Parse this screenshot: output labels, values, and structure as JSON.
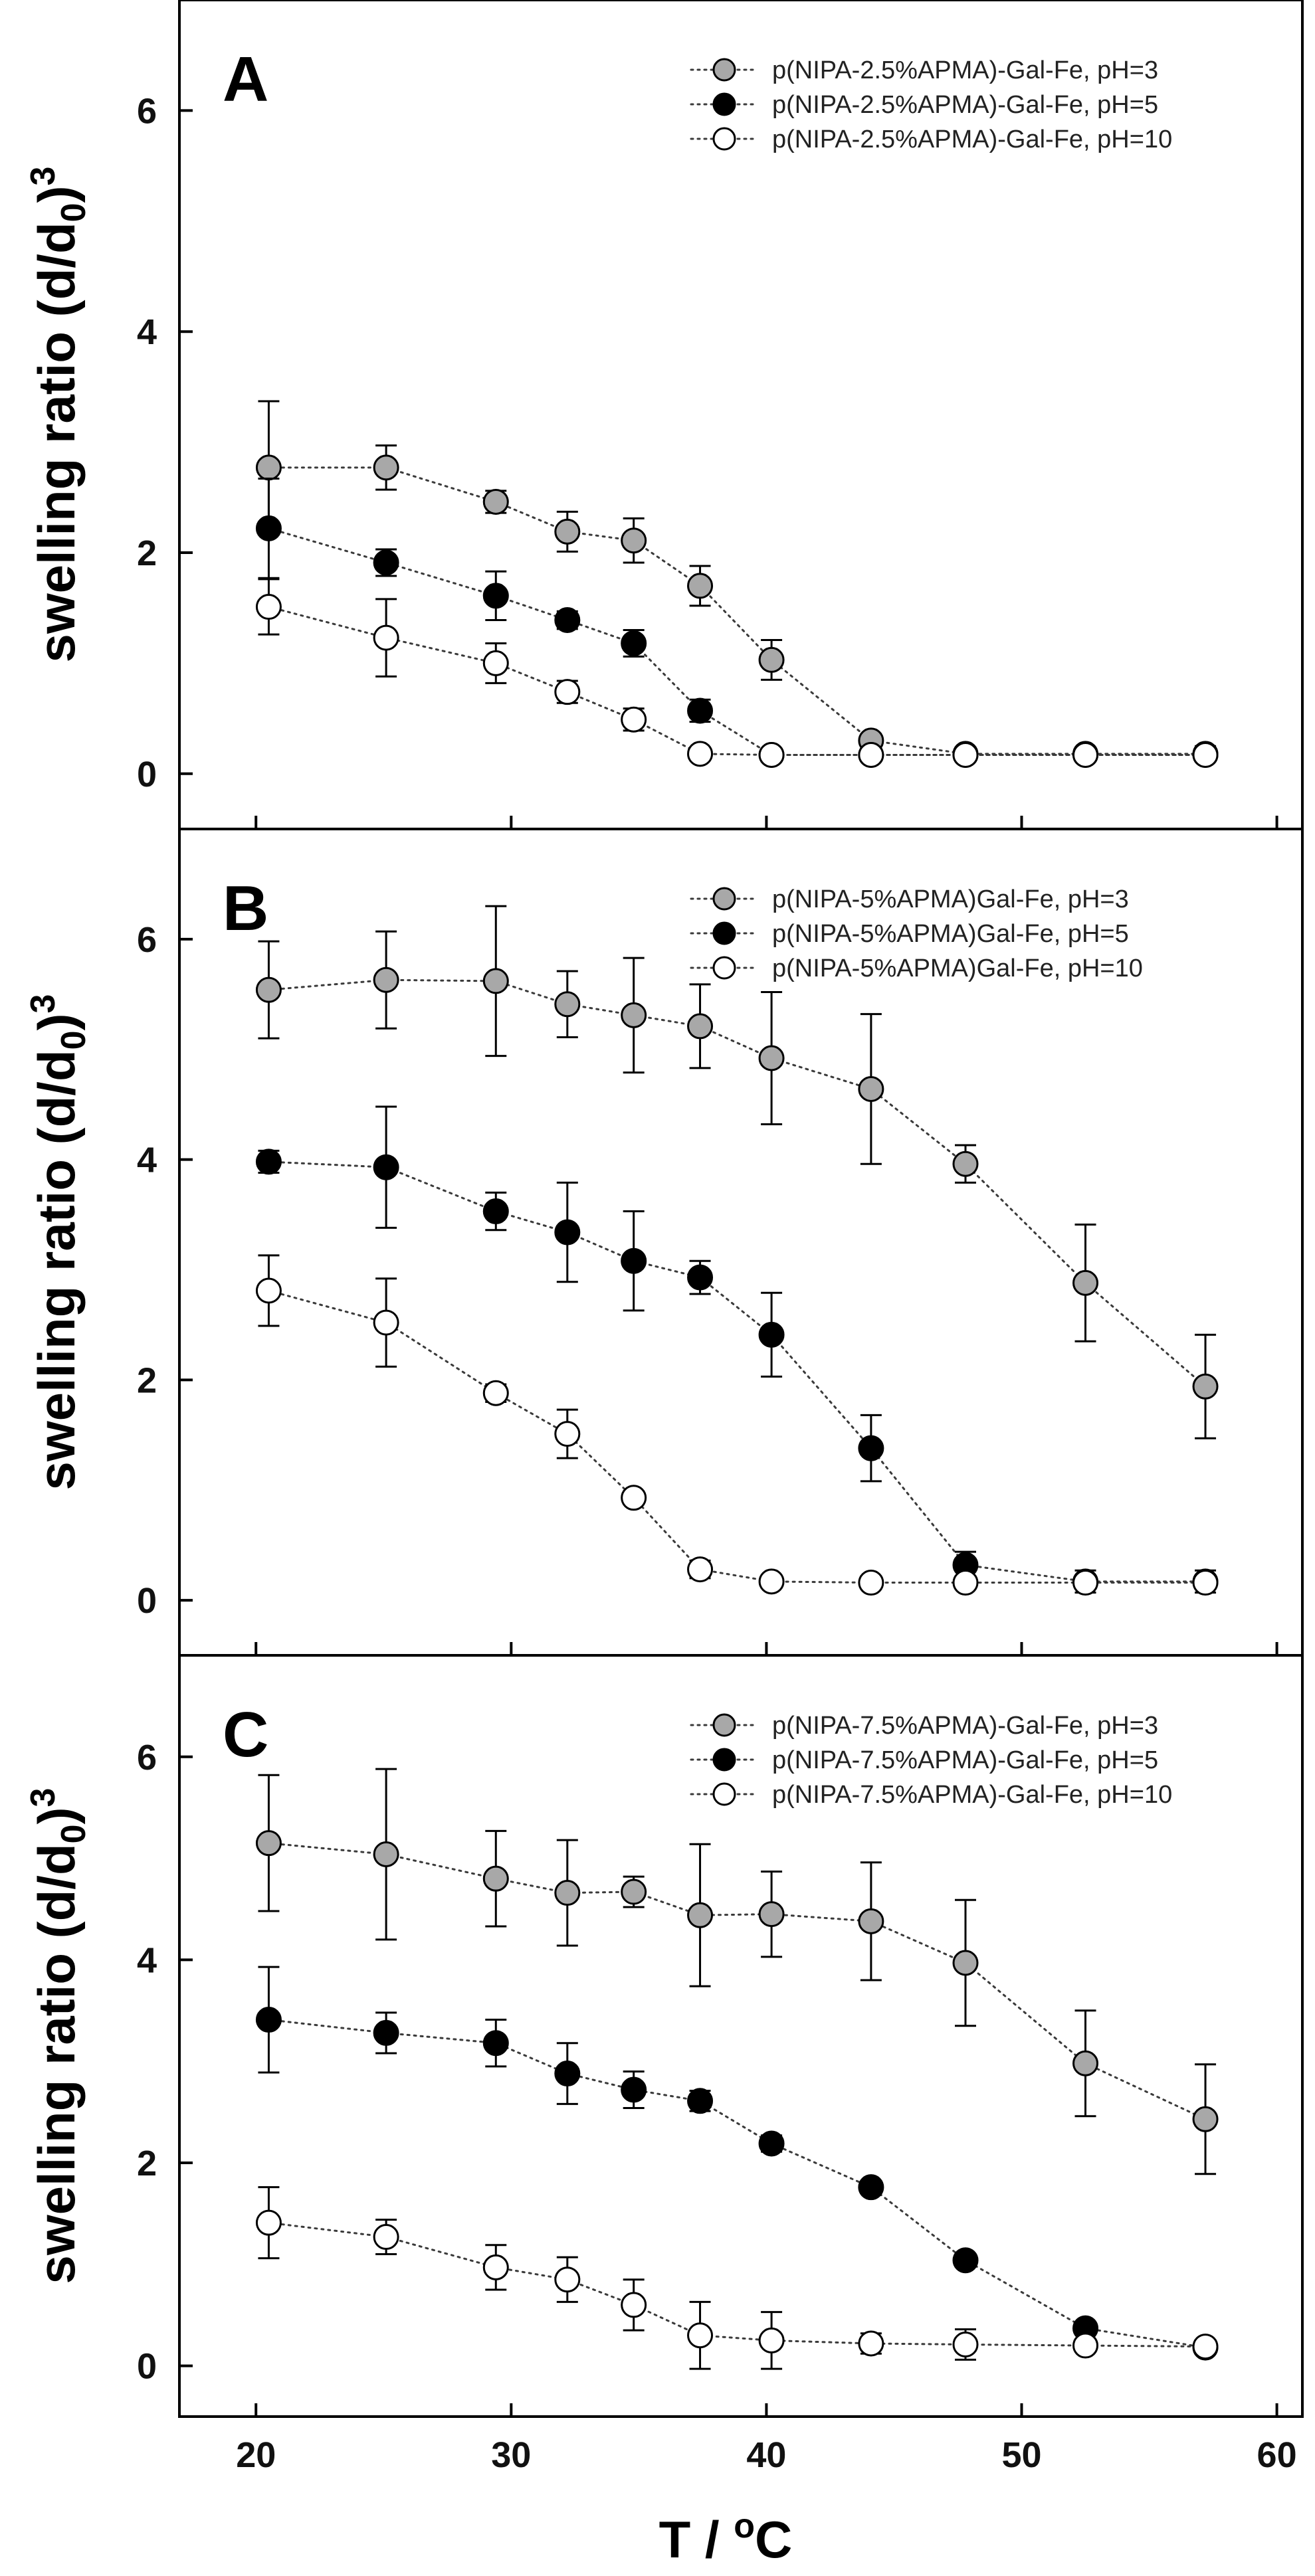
{
  "chart_data": [
    {
      "type": "scatter",
      "panel_label": "A",
      "xlabel": "T / oC",
      "ylabel": "swelling ratio (d/d0)3",
      "xlim": [
        17,
        61
      ],
      "ylim": [
        -0.5,
        7
      ],
      "xticks": [
        "20",
        "30",
        "40",
        "50",
        "60"
      ],
      "yticks": [
        "0",
        "2",
        "4",
        "6"
      ],
      "legend_position": "top-right",
      "series": [
        {
          "name": "p(NIPA-2.5%APMA)-Gal-Fe, pH=3",
          "color": "#a8a8a8",
          "x": [
            20.5,
            25.1,
            29.4,
            32.2,
            34.8,
            37.4,
            40.2,
            44.1,
            47.8,
            52.5,
            57.2
          ],
          "y": [
            2.77,
            2.77,
            2.46,
            2.19,
            2.11,
            1.7,
            1.03,
            0.3,
            0.18,
            0.18,
            0.18
          ],
          "err": [
            0.6,
            0.2,
            0.1,
            0.18,
            0.2,
            0.18,
            0.18,
            0.06,
            0.04,
            0.04,
            0.07
          ]
        },
        {
          "name": "p(NIPA-2.5%APMA)-Gal-Fe, pH=5",
          "color": "#000000",
          "x": [
            20.5,
            25.1,
            29.4,
            32.2,
            34.8,
            37.4,
            40.2,
            44.1,
            47.8,
            52.5,
            57.2
          ],
          "y": [
            2.22,
            1.91,
            1.61,
            1.39,
            1.18,
            0.57,
            0.17,
            0.17,
            0.17,
            0.17,
            0.17
          ],
          "err": [
            0.45,
            0.12,
            0.22,
            0.08,
            0.12,
            0.1,
            0.04,
            0.04,
            0.04,
            0.04,
            0.04
          ]
        },
        {
          "name": "p(NIPA-2.5%APMA)-Gal-Fe, pH=10",
          "color": "#ffffff",
          "x": [
            20.5,
            25.1,
            29.4,
            32.2,
            34.8,
            37.4,
            40.2,
            44.1,
            47.8,
            52.5,
            57.2
          ],
          "y": [
            1.51,
            1.23,
            1.0,
            0.74,
            0.49,
            0.18,
            0.17,
            0.17,
            0.17,
            0.17,
            0.17
          ],
          "err": [
            0.25,
            0.35,
            0.18,
            0.1,
            0.1,
            0.04,
            0.04,
            0.04,
            0.04,
            0.04,
            0.04
          ]
        }
      ]
    },
    {
      "type": "scatter",
      "panel_label": "B",
      "xlabel": "T / oC",
      "ylabel": "swelling ratio (d/d0)3",
      "xlim": [
        17,
        61
      ],
      "ylim": [
        -0.5,
        7
      ],
      "xticks": [
        "20",
        "30",
        "40",
        "50",
        "60"
      ],
      "yticks": [
        "0",
        "2",
        "4",
        "6"
      ],
      "legend_position": "top-right",
      "series": [
        {
          "name": "p(NIPA-5%APMA)Gal-Fe, pH=3",
          "color": "#a8a8a8",
          "x": [
            20.5,
            25.1,
            29.4,
            32.2,
            34.8,
            37.4,
            40.2,
            44.1,
            47.8,
            52.5,
            57.2
          ],
          "y": [
            5.54,
            5.63,
            5.62,
            5.41,
            5.31,
            5.21,
            4.92,
            4.64,
            3.96,
            2.88,
            1.94
          ],
          "err": [
            0.44,
            0.44,
            0.68,
            0.3,
            0.52,
            0.38,
            0.6,
            0.68,
            0.17,
            0.53,
            0.47
          ]
        },
        {
          "name": "p(NIPA-5%APMA)Gal-Fe, pH=5",
          "color": "#000000",
          "x": [
            20.5,
            25.1,
            29.4,
            32.2,
            34.8,
            37.4,
            40.2,
            44.1,
            47.8,
            52.5,
            57.2
          ],
          "y": [
            3.98,
            3.93,
            3.53,
            3.34,
            3.08,
            2.93,
            2.41,
            1.38,
            0.32,
            0.17,
            0.17
          ],
          "err": [
            0.1,
            0.55,
            0.17,
            0.45,
            0.45,
            0.15,
            0.38,
            0.3,
            0.12,
            0.1,
            0.1
          ]
        },
        {
          "name": "p(NIPA-5%APMA)Gal-Fe, pH=10",
          "color": "#ffffff",
          "x": [
            20.5,
            25.1,
            29.4,
            32.2,
            34.8,
            37.4,
            40.2,
            44.1,
            47.8,
            52.5,
            57.2
          ],
          "y": [
            2.81,
            2.52,
            1.88,
            1.51,
            0.93,
            0.28,
            0.17,
            0.16,
            0.16,
            0.16,
            0.16
          ],
          "err": [
            0.32,
            0.4,
            0.08,
            0.22,
            0.06,
            0.08,
            0.04,
            0.04,
            0.04,
            0.04,
            0.04
          ]
        }
      ]
    },
    {
      "type": "scatter",
      "panel_label": "C",
      "xlabel": "T / oC",
      "ylabel": "swelling ratio (d/d0)3",
      "xlim": [
        17,
        61
      ],
      "ylim": [
        -0.5,
        7
      ],
      "xticks": [
        "20",
        "30",
        "40",
        "50",
        "60"
      ],
      "yticks": [
        "0",
        "2",
        "4",
        "6"
      ],
      "legend_position": "top-right",
      "series": [
        {
          "name": "p(NIPA-7.5%APMA)-Gal-Fe, pH=3",
          "color": "#a8a8a8",
          "x": [
            20.5,
            25.1,
            29.4,
            32.2,
            34.8,
            37.4,
            40.2,
            44.1,
            47.8,
            52.5,
            57.2
          ],
          "y": [
            5.15,
            5.04,
            4.8,
            4.66,
            4.67,
            4.44,
            4.45,
            4.38,
            3.97,
            2.98,
            2.43
          ],
          "err": [
            0.67,
            0.84,
            0.47,
            0.52,
            0.15,
            0.7,
            0.42,
            0.58,
            0.62,
            0.52,
            0.54
          ]
        },
        {
          "name": "p(NIPA-7.5%APMA)-Gal-Fe, pH=5",
          "color": "#000000",
          "x": [
            20.5,
            25.1,
            29.4,
            32.2,
            34.8,
            37.4,
            40.2,
            44.1,
            47.8,
            52.5,
            57.2
          ],
          "y": [
            3.41,
            3.28,
            3.18,
            2.88,
            2.72,
            2.61,
            2.19,
            1.76,
            1.04,
            0.37,
            0.18
          ],
          "err": [
            0.52,
            0.2,
            0.23,
            0.3,
            0.18,
            0.1,
            0.08,
            0.06,
            0.06,
            0.06,
            0.06
          ]
        },
        {
          "name": "p(NIPA-7.5%APMA)-Gal-Fe, pH=10",
          "color": "#ffffff",
          "x": [
            20.5,
            25.1,
            29.4,
            32.2,
            34.8,
            37.4,
            40.2,
            44.1,
            47.8,
            52.5,
            57.2
          ],
          "y": [
            1.41,
            1.27,
            0.97,
            0.85,
            0.6,
            0.3,
            0.25,
            0.22,
            0.21,
            0.2,
            0.19
          ],
          "err": [
            0.35,
            0.17,
            0.22,
            0.22,
            0.25,
            0.33,
            0.28,
            0.1,
            0.15,
            0.06,
            0.06
          ]
        }
      ]
    }
  ]
}
